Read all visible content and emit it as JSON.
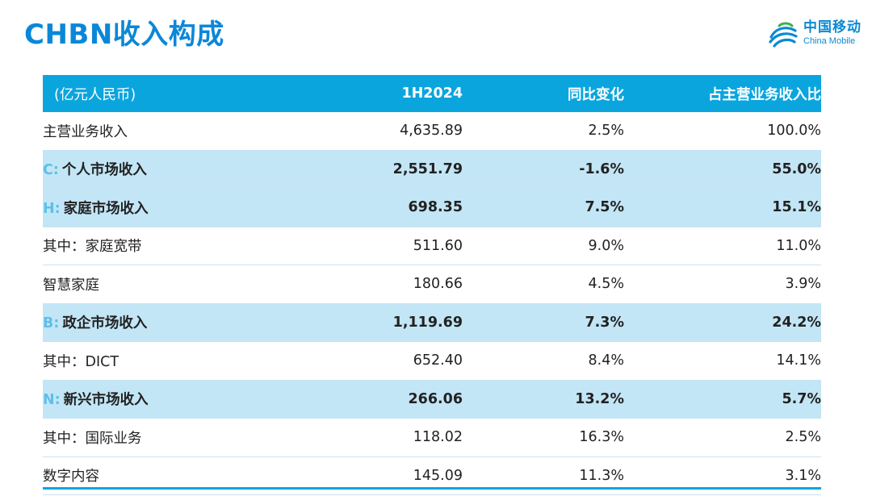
{
  "title": "CHBN收入构成",
  "logo": {
    "cn": "中国移动",
    "en": "China Mobile",
    "icon": "china-mobile-logo-icon",
    "color": "#0a8ad4"
  },
  "colors": {
    "accent": "#0b87d8",
    "header_bg": "#0ba5de",
    "segment_bg": "#c3e6f6",
    "letter": "#5cc0ea"
  },
  "table": {
    "headers": [
      "(亿元人民币)",
      "1H2024",
      "同比变化",
      "占主营业务收入比"
    ],
    "rows": [
      {
        "prefix": "",
        "label": "主营业务收入",
        "value": "4,635.89",
        "yoy": "2.5%",
        "share": "100.0%"
      },
      {
        "prefix": "C:",
        "label": "个人市场收入",
        "value": "2,551.79",
        "yoy": "-1.6%",
        "share": "55.0%"
      },
      {
        "prefix": "H:",
        "label": "家庭市场收入",
        "value": "698.35",
        "yoy": "7.5%",
        "share": "15.1%"
      },
      {
        "prefix": "",
        "label": "其中：家庭宽带",
        "value": "511.60",
        "yoy": "9.0%",
        "share": "11.0%"
      },
      {
        "prefix": "",
        "label": "智慧家庭",
        "value": "180.66",
        "yoy": "4.5%",
        "share": "3.9%"
      },
      {
        "prefix": "B:",
        "label": "政企市场收入",
        "value": "1,119.69",
        "yoy": "7.3%",
        "share": "24.2%"
      },
      {
        "prefix": "",
        "label": "其中：DICT",
        "value": "652.40",
        "yoy": "8.4%",
        "share": "14.1%"
      },
      {
        "prefix": "N:",
        "label": "新兴市场收入",
        "value": "266.06",
        "yoy": "13.2%",
        "share": "5.7%"
      },
      {
        "prefix": "",
        "label": "其中：国际业务",
        "value": "118.02",
        "yoy": "16.3%",
        "share": "2.5%"
      },
      {
        "prefix": "",
        "label": "数字内容",
        "value": "145.09",
        "yoy": "11.3%",
        "share": "3.1%"
      }
    ]
  }
}
